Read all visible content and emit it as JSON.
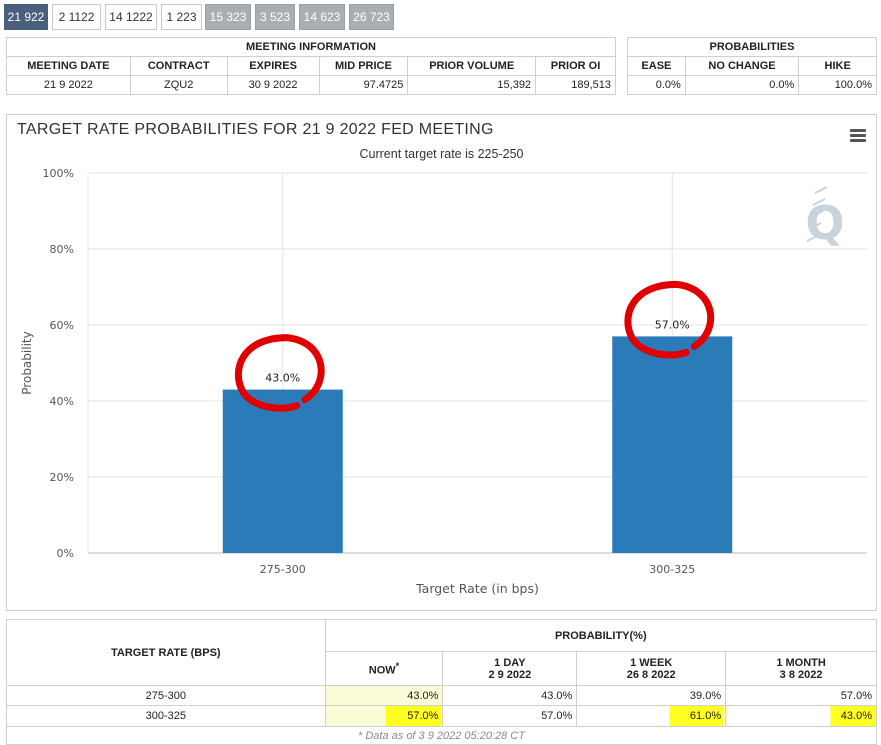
{
  "tabs": [
    "21 922",
    "2 1122",
    "14 1222",
    "1 223",
    "15 323",
    "3 523",
    "14 623",
    "26 723"
  ],
  "meeting_info": {
    "caption": "MEETING INFORMATION",
    "headers": [
      "MEETING DATE",
      "CONTRACT",
      "EXPIRES",
      "MID PRICE",
      "PRIOR VOLUME",
      "PRIOR OI"
    ],
    "row": [
      "21 9 2022",
      "ZQU2",
      "30 9 2022",
      "97.4725",
      "15,392",
      "189,513"
    ]
  },
  "probabilities": {
    "caption": "PROBABILITIES",
    "headers": [
      "EASE",
      "NO CHANGE",
      "HIKE"
    ],
    "row": [
      "0.0%",
      "0.0%",
      "100.0%"
    ]
  },
  "chart": {
    "title": "TARGET RATE PROBABILITIES FOR 21 9 2022 FED MEETING",
    "subtitle": "Current target rate is 225-250",
    "bar_color": "#2b7bb9",
    "annotation_color": "#e00000"
  },
  "chart_data": {
    "type": "bar",
    "categories": [
      "275-300",
      "300-325"
    ],
    "values": [
      43.0,
      57.0
    ],
    "data_labels": [
      "43.0%",
      "57.0%"
    ],
    "xlabel": "Target Rate (in bps)",
    "ylabel": "Probability",
    "ylim": [
      0,
      100
    ],
    "yticks": [
      "0%",
      "20%",
      "40%",
      "60%",
      "80%",
      "100%"
    ],
    "grid": true
  },
  "prob_table": {
    "target_header": "TARGET RATE (BPS)",
    "prob_header": "PROBABILITY(%)",
    "columns": [
      {
        "label": "NOW",
        "sup": "*",
        "date": ""
      },
      {
        "label": "1 DAY",
        "date": "2 9 2022"
      },
      {
        "label": "1 WEEK",
        "date": "26 8 2022"
      },
      {
        "label": "1 MONTH",
        "date": "3 8 2022"
      }
    ],
    "rows": [
      {
        "rate": "275-300",
        "values": [
          "43.0%",
          "43.0%",
          "39.0%",
          "57.0%"
        ]
      },
      {
        "rate": "300-325",
        "values": [
          "57.0%",
          "57.0%",
          "61.0%",
          "43.0%"
        ]
      }
    ],
    "footnote": "* Data as of 3 9 2022 05:20:28 CT"
  },
  "highlight_color": "#ffff22"
}
